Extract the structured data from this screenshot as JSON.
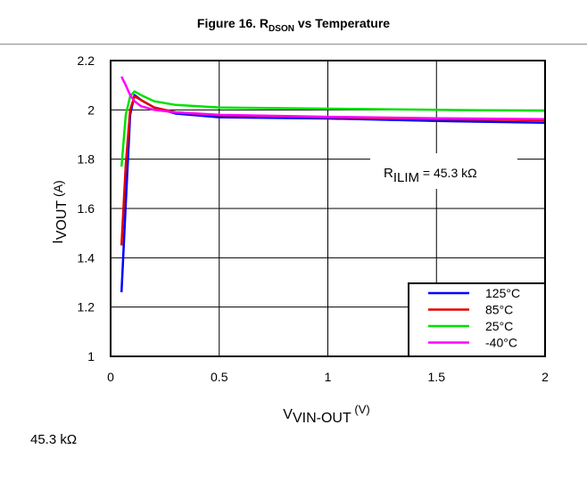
{
  "figure": {
    "title_prefix": "Figure 16. R",
    "title_sub": "DSON",
    "title_suffix": " vs Temperature"
  },
  "caption": "45.3 kΩ",
  "chart_data": {
    "type": "line",
    "ylabel_main": "I",
    "ylabel_sub": "VOUT",
    "ylabel_unit": " (A)",
    "xlabel_main": "V",
    "xlabel_sub": "VIN-OUT",
    "xlabel_unit": "  (V)",
    "annotation_main": "R",
    "annotation_sub": "ILIM",
    "annotation_value": " = 45.3 kΩ",
    "xlim": [
      0,
      2
    ],
    "ylim": [
      1,
      2.2
    ],
    "xticks": [
      "0",
      "0.5",
      "1",
      "1.5",
      "2"
    ],
    "yticks": [
      "1",
      "1.2",
      "1.4",
      "1.6",
      "1.8",
      "2",
      "2.2"
    ],
    "grid": true,
    "legend_position": "bottom-right",
    "series": [
      {
        "name": "125°C",
        "color": "#0000ff",
        "x": [
          0.05,
          0.07,
          0.09,
          0.11,
          0.14,
          0.2,
          0.3,
          0.5,
          1.0,
          1.5,
          2.0
        ],
        "y": [
          1.26,
          1.62,
          1.98,
          2.06,
          2.04,
          2.01,
          1.985,
          1.97,
          1.965,
          1.955,
          1.948
        ]
      },
      {
        "name": "85°C",
        "color": "#e00000",
        "x": [
          0.05,
          0.07,
          0.09,
          0.11,
          0.14,
          0.2,
          0.3,
          0.5,
          1.0,
          1.5,
          2.0
        ],
        "y": [
          1.45,
          1.78,
          2.0,
          2.055,
          2.04,
          2.01,
          1.99,
          1.978,
          1.97,
          1.963,
          1.958
        ]
      },
      {
        "name": "25°C",
        "color": "#00e000",
        "x": [
          0.05,
          0.07,
          0.09,
          0.11,
          0.14,
          0.2,
          0.3,
          0.5,
          1.0,
          1.5,
          2.0
        ],
        "y": [
          1.77,
          1.98,
          2.055,
          2.075,
          2.06,
          2.035,
          2.02,
          2.01,
          2.005,
          2.0,
          1.997
        ]
      },
      {
        "name": "-40°C",
        "color": "#ff00ff",
        "x": [
          0.05,
          0.07,
          0.09,
          0.11,
          0.14,
          0.2,
          0.3,
          0.5,
          1.0,
          1.5,
          2.0
        ],
        "y": [
          2.135,
          2.1,
          2.06,
          2.035,
          2.015,
          2.0,
          1.99,
          1.98,
          1.972,
          1.966,
          1.962
        ]
      }
    ]
  }
}
